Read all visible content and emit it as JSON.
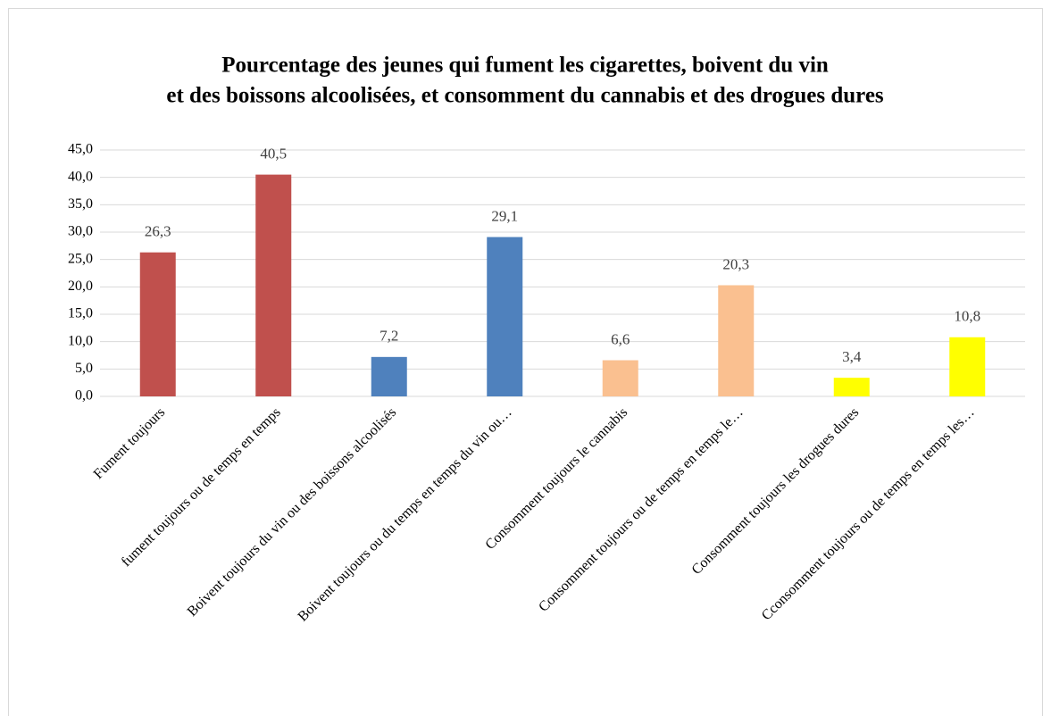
{
  "chart_data": {
    "type": "bar",
    "title": [
      "Pourcentage des jeunes qui fument les cigarettes, boivent du vin",
      "et des boissons alcoolisées, et consomment du cannabis et des drogues dures"
    ],
    "categories": [
      "Fument toujours",
      "fument toujours ou de temps en temps",
      "Boivent toujours du vin ou des boissons alcoolisés",
      "Boivent toujours ou du temps en temps du vin ou…",
      "Consomment toujours le cannabis",
      "Consomment toujours ou de temps en temps le…",
      "Consomment toujours les drogues dures",
      "Cconsomment toujours ou de temps en temps les…"
    ],
    "values": [
      26.3,
      40.5,
      7.2,
      29.1,
      6.6,
      20.3,
      3.4,
      10.8
    ],
    "value_labels": [
      "26,3",
      "40,5",
      "7,2",
      "29,1",
      "6,6",
      "20,3",
      "3,4",
      "10,8"
    ],
    "colors": [
      "#c0504d",
      "#c0504d",
      "#4f81bd",
      "#4f81bd",
      "#fac090",
      "#fac090",
      "#ffff00",
      "#ffff00"
    ],
    "ylim": [
      0,
      45
    ],
    "yticks": [
      {
        "value": 0,
        "label": "0,0"
      },
      {
        "value": 5,
        "label": "5,0"
      },
      {
        "value": 10,
        "label": "10,0"
      },
      {
        "value": 15,
        "label": "15,0"
      },
      {
        "value": 20,
        "label": "20,0"
      },
      {
        "value": 25,
        "label": "25,0"
      },
      {
        "value": 30,
        "label": "30,0"
      },
      {
        "value": 35,
        "label": "35,0"
      },
      {
        "value": 40,
        "label": "40,0"
      },
      {
        "value": 45,
        "label": "45,0"
      }
    ],
    "grid": true
  }
}
